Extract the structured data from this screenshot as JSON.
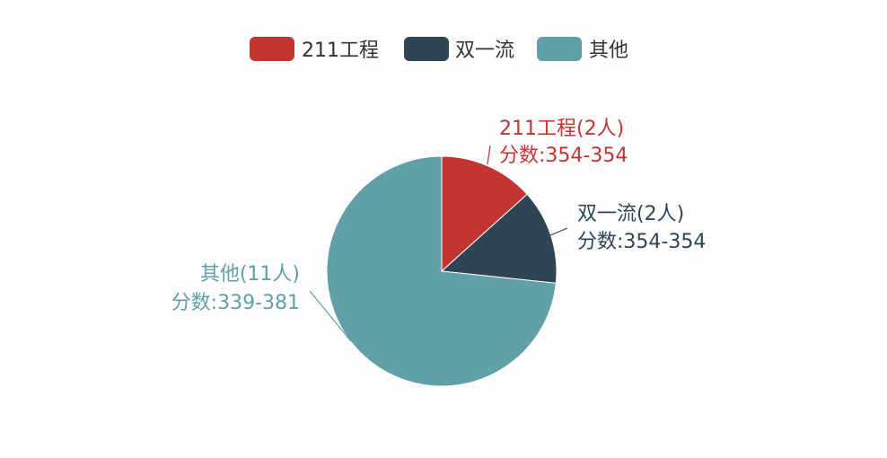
{
  "chart_data": {
    "type": "pie",
    "legend_position": "top-center",
    "categories": [
      "211工程",
      "双一流",
      "其他"
    ],
    "values": [
      2,
      2,
      11
    ],
    "colors": [
      "#c23531",
      "#2f4554",
      "#61a0a8"
    ],
    "labels": [
      {
        "line1": "211工程(2人)",
        "line2": "分数:354-354"
      },
      {
        "line1": "双一流(2人)",
        "line2": "分数:354-354"
      },
      {
        "line1": "其他(11人)",
        "line2": "分数:339-381"
      }
    ]
  }
}
